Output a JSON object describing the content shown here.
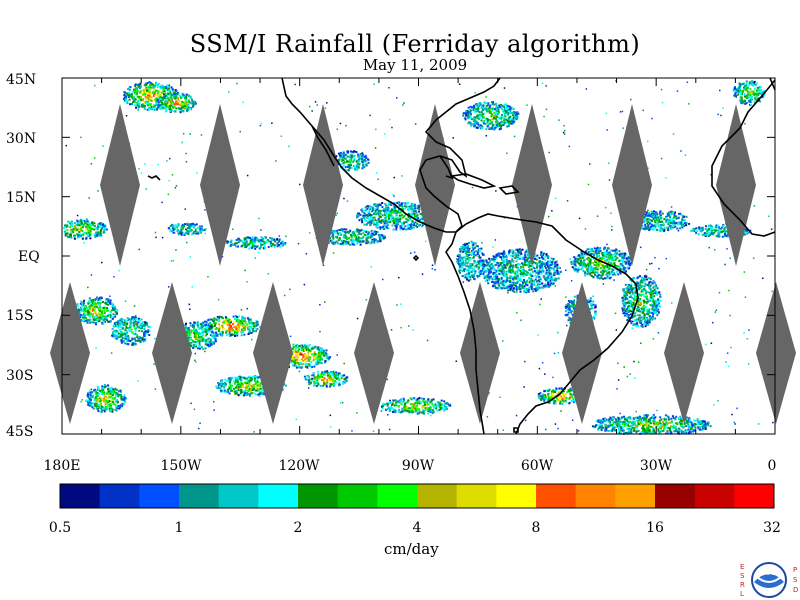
{
  "title": "SSM/I Rainfall (Ferriday algorithm)",
  "date": "May 11, 2009",
  "map": {
    "lat_labels": [
      "45N",
      "30N",
      "15N",
      "EQ",
      "15S",
      "30S",
      "45S"
    ],
    "lon_labels": [
      "180E",
      "150W",
      "120W",
      "90W",
      "60W",
      "30W",
      "0"
    ],
    "gap_color": "#666666",
    "land_outline_color": "#000000"
  },
  "colorbar": {
    "units": "cm/day",
    "tick_labels": [
      "0.5",
      "1",
      "2",
      "4",
      "8",
      "16",
      "32"
    ],
    "colors": [
      "#000a80",
      "#0032c8",
      "#0050ff",
      "#00968c",
      "#00c8c8",
      "#00ffff",
      "#009600",
      "#00c800",
      "#00ff00",
      "#b4b400",
      "#dcdc00",
      "#ffff00",
      "#ff5000",
      "#ff8200",
      "#ffa000",
      "#960000",
      "#c80000",
      "#ff0000"
    ]
  },
  "logo": {
    "left_letters": "ESRL",
    "right_letters": "PSD",
    "center_text": "NOAA"
  }
}
